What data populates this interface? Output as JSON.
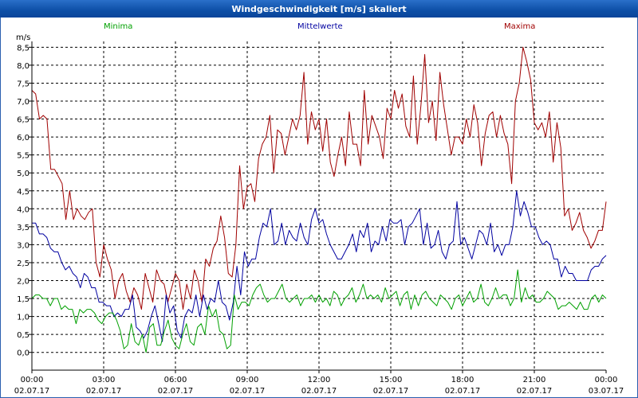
{
  "window": {
    "title": "Windgeschwindigkeit [m/s] skaliert"
  },
  "chart_data": {
    "type": "line",
    "title": "Windgeschwindigkeit [m/s] skaliert",
    "ylabel": "m/s",
    "xlabel": "",
    "ylim": [
      -0.5,
      8.8
    ],
    "xlim": [
      0,
      24
    ],
    "grid": true,
    "y_ticks": [
      "0,0",
      "0,5",
      "1,0",
      "1,5",
      "2,0",
      "2,5",
      "3,0",
      "3,5",
      "4,0",
      "4,5",
      "5,0",
      "5,5",
      "6,0",
      "6,5",
      "7,0",
      "7,5",
      "8,0",
      "8,5"
    ],
    "x_ticks": [
      {
        "time": "00:00",
        "date": "02.07.17"
      },
      {
        "time": "03:00",
        "date": "02.07.17"
      },
      {
        "time": "06:00",
        "date": "02.07.17"
      },
      {
        "time": "09:00",
        "date": "02.07.17"
      },
      {
        "time": "12:00",
        "date": "02.07.17"
      },
      {
        "time": "15:00",
        "date": "02.07.17"
      },
      {
        "time": "18:00",
        "date": "02.07.17"
      },
      {
        "time": "21:00",
        "date": "02.07.17"
      },
      {
        "time": "00:00",
        "date": "03.07.17"
      }
    ],
    "legend": [
      {
        "name": "Minima",
        "color": "#00a000",
        "position": "top-left"
      },
      {
        "name": "Mittelwerte",
        "color": "#0000a0",
        "position": "top-center"
      },
      {
        "name": "Maxima",
        "color": "#a00000",
        "position": "top-right"
      }
    ],
    "series": [
      {
        "name": "Maxima",
        "color": "#a00000",
        "values": [
          7.3,
          7.2,
          6.5,
          6.6,
          6.5,
          5.1,
          5.1,
          4.9,
          4.7,
          3.7,
          4.5,
          3.7,
          4.0,
          3.8,
          3.7,
          3.9,
          4.0,
          2.5,
          2.1,
          3.0,
          2.6,
          2.3,
          1.5,
          2.0,
          2.2,
          1.7,
          1.4,
          1.8,
          1.6,
          1.2,
          2.2,
          1.8,
          1.4,
          2.3,
          2.0,
          1.9,
          1.4,
          1.8,
          2.2,
          2.0,
          1.2,
          1.9,
          1.5,
          2.3,
          2.0,
          1.4,
          2.6,
          2.4,
          2.9,
          3.1,
          3.8,
          3.2,
          2.2,
          2.1,
          3.0,
          5.2,
          4.0,
          4.6,
          4.7,
          4.2,
          5.4,
          5.8,
          6.0,
          6.6,
          5.0,
          6.2,
          6.1,
          5.5,
          6.0,
          6.5,
          6.2,
          6.6,
          7.8,
          5.8,
          6.7,
          6.2,
          6.5,
          5.6,
          6.5,
          5.3,
          4.9,
          5.5,
          6.0,
          5.2,
          6.7,
          5.8,
          5.8,
          5.2,
          7.3,
          5.8,
          6.6,
          6.3,
          6.0,
          5.4,
          6.8,
          6.5,
          7.3,
          6.8,
          7.2,
          6.3,
          6.0,
          7.7,
          5.8,
          6.9,
          8.3,
          6.4,
          7.0,
          5.9,
          7.8,
          6.9,
          6.2,
          5.5,
          6.0,
          6.0,
          5.8,
          6.5,
          6.0,
          6.9,
          6.4,
          5.2,
          6.1,
          6.6,
          6.7,
          6.0,
          6.6,
          6.1,
          5.8,
          4.7,
          7.0,
          7.5,
          8.5,
          8.1,
          7.6,
          6.4,
          6.2,
          6.4,
          6.0,
          6.7,
          5.3,
          6.4,
          5.7,
          3.8,
          4.0,
          3.4,
          3.6,
          3.9,
          3.4,
          3.2,
          2.9,
          3.1,
          3.4,
          3.4,
          4.2
        ]
      },
      {
        "name": "Mittelwerte",
        "color": "#0000a0",
        "values": [
          3.6,
          3.6,
          3.3,
          3.3,
          3.2,
          2.9,
          2.8,
          2.8,
          2.5,
          2.3,
          2.4,
          2.2,
          2.1,
          1.8,
          2.2,
          2.1,
          1.8,
          1.8,
          1.4,
          1.4,
          1.3,
          1.3,
          1.0,
          1.1,
          1.0,
          1.2,
          1.2,
          1.6,
          0.7,
          0.6,
          0.4,
          0.6,
          1.0,
          1.3,
          0.8,
          0.3,
          1.6,
          1.1,
          1.3,
          0.6,
          0.4,
          1.0,
          1.2,
          1.1,
          1.6,
          1.0,
          1.6,
          1.2,
          1.5,
          1.4,
          2.0,
          1.4,
          1.3,
          0.9,
          1.4,
          2.4,
          1.6,
          2.8,
          2.4,
          2.6,
          2.6,
          3.2,
          3.6,
          3.5,
          4.0,
          3.0,
          3.1,
          3.6,
          3.0,
          3.4,
          3.2,
          3.1,
          3.6,
          3.2,
          3.0,
          3.7,
          4.0,
          3.6,
          3.7,
          3.3,
          3.0,
          2.8,
          2.6,
          2.6,
          2.8,
          3.0,
          3.3,
          2.8,
          3.4,
          3.2,
          3.6,
          2.8,
          3.1,
          3.0,
          3.5,
          3.1,
          3.7,
          3.6,
          3.6,
          3.7,
          3.0,
          3.5,
          3.6,
          3.8,
          4.0,
          3.0,
          3.6,
          2.9,
          3.0,
          3.4,
          2.8,
          2.6,
          3.0,
          3.1,
          4.2,
          3.0,
          3.2,
          2.9,
          2.6,
          3.0,
          3.4,
          3.3,
          3.0,
          3.6,
          2.8,
          3.0,
          2.7,
          3.0,
          3.0,
          3.5,
          4.5,
          3.8,
          4.2,
          3.9,
          3.5,
          3.5,
          3.2,
          3.0,
          3.1,
          3.0,
          2.6,
          2.6,
          2.1,
          2.4,
          2.2,
          2.2,
          2.0,
          2.0,
          2.0,
          2.0,
          2.3,
          2.4,
          2.4,
          2.6,
          2.7
        ]
      },
      {
        "name": "Minima",
        "color": "#00a000",
        "values": [
          1.5,
          1.6,
          1.6,
          1.5,
          1.5,
          1.3,
          1.5,
          1.5,
          1.2,
          1.3,
          1.2,
          1.2,
          0.8,
          1.2,
          1.1,
          1.2,
          1.2,
          1.1,
          0.9,
          0.8,
          1.0,
          1.1,
          1.1,
          0.9,
          0.6,
          0.1,
          0.2,
          0.8,
          0.3,
          0.2,
          0.5,
          0.0,
          0.7,
          0.8,
          0.2,
          0.2,
          0.6,
          0.9,
          0.4,
          0.2,
          0.1,
          0.5,
          0.8,
          0.3,
          0.2,
          0.7,
          0.8,
          0.5,
          1.3,
          1.0,
          1.2,
          0.6,
          0.5,
          0.1,
          0.2,
          1.6,
          1.2,
          1.4,
          1.4,
          1.3,
          1.6,
          1.8,
          1.9,
          1.6,
          1.4,
          1.5,
          1.5,
          1.7,
          1.9,
          1.5,
          1.4,
          1.5,
          1.6,
          1.3,
          1.5,
          1.5,
          1.6,
          1.4,
          1.6,
          1.4,
          1.5,
          1.3,
          1.7,
          1.6,
          1.3,
          1.5,
          1.6,
          1.8,
          1.4,
          1.6,
          1.9,
          1.5,
          1.6,
          1.5,
          1.6,
          1.4,
          1.8,
          1.5,
          1.6,
          1.7,
          1.3,
          1.6,
          1.7,
          1.2,
          1.6,
          1.3,
          1.6,
          1.7,
          1.5,
          1.4,
          1.3,
          1.6,
          1.5,
          1.4,
          1.2,
          1.5,
          1.6,
          1.3,
          1.5,
          1.7,
          1.4,
          1.5,
          1.9,
          1.4,
          1.3,
          1.5,
          1.8,
          1.5,
          1.6,
          1.6,
          1.3,
          1.5,
          2.3,
          1.4,
          1.8,
          1.5,
          1.6,
          1.4,
          1.4,
          1.5,
          1.7,
          1.6,
          1.5,
          1.2,
          1.3,
          1.3,
          1.4,
          1.3,
          1.2,
          1.4,
          1.2,
          1.2,
          1.5,
          1.6,
          1.4,
          1.6,
          1.5
        ]
      }
    ]
  }
}
